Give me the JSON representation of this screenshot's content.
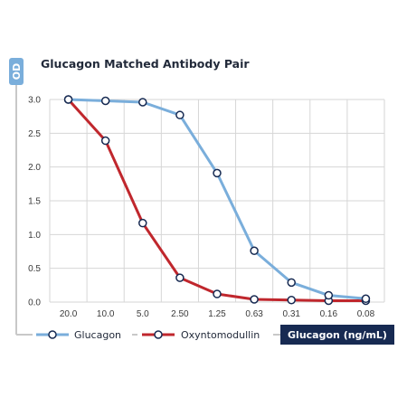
{
  "chart_data": {
    "type": "line",
    "title": "Glucagon Matched Antibody Pair",
    "ylabel": "OD",
    "xlabel": "Glucagon (ng/mL)",
    "categories": [
      "20.0",
      "10.0",
      "5.0",
      "2.50",
      "1.25",
      "0.63",
      "0.31",
      "0.16",
      "0.08"
    ],
    "ylim": [
      0,
      3.0
    ],
    "yticks": [
      "0.0",
      "0.5",
      "1.0",
      "1.5",
      "2.0",
      "2.5",
      "3.0"
    ],
    "grid": true,
    "legend_position": "bottom",
    "series": [
      {
        "name": "Glucagon",
        "color": "#7aaedb",
        "values": [
          3.0,
          2.98,
          2.96,
          2.77,
          1.91,
          0.76,
          0.29,
          0.1,
          0.05
        ]
      },
      {
        "name": "Oxyntomodullin",
        "color": "#c0272d",
        "values": [
          3.0,
          2.39,
          1.17,
          0.36,
          0.12,
          0.04,
          0.03,
          0.02,
          0.02
        ]
      }
    ]
  },
  "colors": {
    "navy": "#172a52",
    "axis": "#c8c8c8",
    "grid": "#d6d6d6",
    "marker_fill": "#ffffff"
  }
}
